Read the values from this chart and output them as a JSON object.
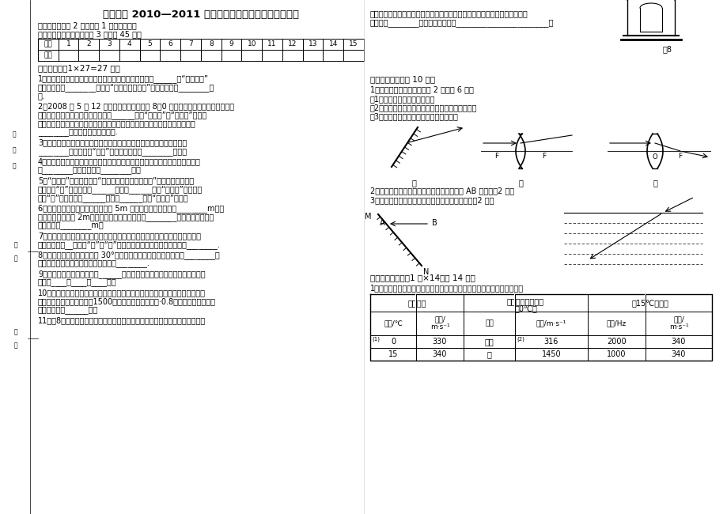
{
  "title": "前旗六中 2010—2011 年第一学期期中考试初二物理试卷",
  "subtitle1": "备注：（只交第 2 张卷，第 1 张自己保管）",
  "subtitle2": "一、选择题答题卡（每小题 3 分，共 45 分）",
  "table_numbers": [
    "题号",
    "1",
    "2",
    "3",
    "4",
    "5",
    "6",
    "7",
    "8",
    "9",
    "10",
    "11",
    "12",
    "13",
    "14",
    "15"
  ],
  "table_row2": "选项",
  "section2_title": "二、填空题（1×27=27 分）",
  "q1_lines": [
    "1、电视机上的音量调节旋鈕可以改变声音三个特征中的______。“声音刺耳”",
    "反映了声音的________很高。“闻其声而知其人”是依据声音的________判",
    "断."
  ],
  "q2_lines": [
    "2、2008 年 5 月 12 日我国汶川地区发生了 8．0 级的大地震，给人民群众造成了",
    "重大损失。因为地震产生的声波属于______（填“次声波”或“超声波”）。所",
    "以地震前人们并没有感知到。倒塔房屋中的一些被困人员，通过敲击物体使其",
    "________发出声音，被及时获救."
  ],
  "q3_lines": [
    "3、观看电影时，我们能从各个角度看到银幕上的景象，是由于光发生了",
    "________反射，黑板“反光”是由于光发生了________反射。"
  ],
  "q4_lines": [
    "4、舞台上绿色追光灯照到穿白色上衣、红裙子的演员身上，观众看到她上衣呈",
    "现________色，裙子呈现________色。"
  ],
  "q5_lines": [
    "5、“九寨沟”的镜海中有着“鱼在天上飞，鸟在水中游”的美丽景观，这空",
    "中画面的“鱼”是由于光的______形成的______（填“实或虚”）像；水",
    "中的“鸟”是由于光的______形成的______（填“实或虚”）像。"
  ],
  "q6_lines": [
    "6、一个人站在竖直放置的平面镜前 5m 处，他的像距离平面镜________m。这",
    "个人向平面镜前进 2m，他在平面镜中的像的大小________，他与他在平面镜",
    "中的像相距________m。"
  ],
  "q7_lines": [
    "7、有经验的渔夫用鱼叉捕鱼时，不是将鱼叉对准他看到的鱼，而是对准所看到",
    "的鱼的位置的__（选填“上”或“下”）方叉去，这是由于光在水面发生________."
  ],
  "q8_lines": [
    "8、入射光线与镜面的夹角为 30°，则反射光线与入射光线的夹角为________；",
    "当入射光线垂直射向镜面时，反射角为________."
  ],
  "q9_lines": [
    "9、照相机的镜头相当于一个______镜，用照相机拍摄景物时，能在底片上得",
    "到一个____、____的____像。"
  ],
  "q10_lines": [
    "10、用回声可以帮助船只测量水深，因此在海洋和江河的考察船上都装有声纳。",
    "如果声音在水中的每秒传播1500米，在考察时发出声音·0.8秒后接收到了回声，",
    "这里的水深为______米。"
  ],
  "q11": "11、图8是老师把电铃扣在钓罩里并让其发声，我们可以听到清脆的铃声。当老",
  "right_top_lines": [
    "师用抽气机抽掉钓罩里的空气时，我们发现，随着钓罩里的空气逐渐变少，铃",
    "声逐渐变________。这个实验能说明________________________。"
  ],
  "fig8_label": "图8",
  "section3_title": "三、作图题：（共 10 分）",
  "s3_sub": "1、完成下列光路图（每小题 2 分，共 6 分）",
  "s3_q1": "（1）在甲图中画出入射光线；",
  "s3_q2": "（2）在乙图中画出经凹透镜折射光线的入射光线；",
  "s3_q3": "（3）在丙图中画出经过凸透镜后的光线；",
  "s3_2": "2、根据平面镜成像的特点，作出下图中物体 AB 的像。（2 分）",
  "s3_3": "3、在图中做出光经过水面发生折射时的大致光路（2 分）",
  "section4_title": "四．实验探究题（1 分×14，共 14 分）",
  "s4_sub": "1．请阅读下表，并分析表格中的数据，然后写出两个与声速有关的结论：",
  "bg_color": "#ffffff"
}
